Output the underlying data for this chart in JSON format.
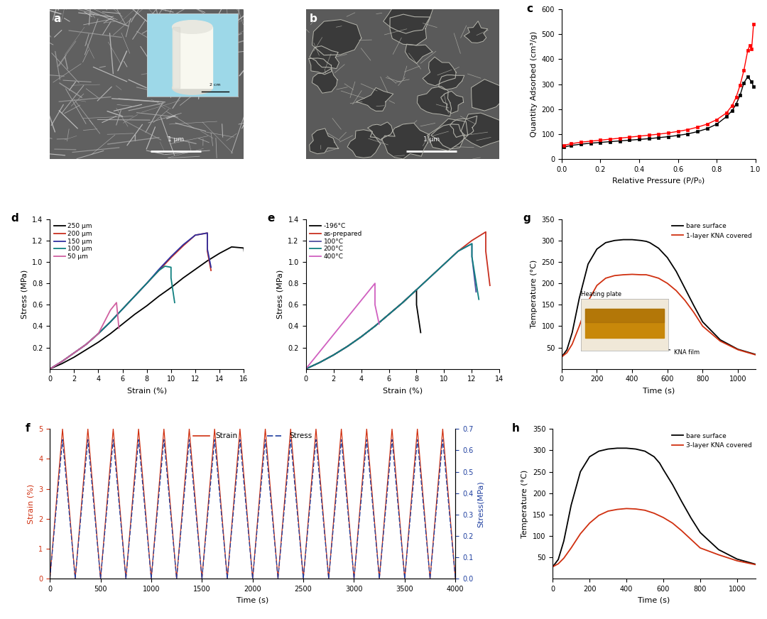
{
  "panel_c": {
    "black_x": [
      0.01,
      0.05,
      0.1,
      0.15,
      0.2,
      0.25,
      0.3,
      0.35,
      0.4,
      0.45,
      0.5,
      0.55,
      0.6,
      0.65,
      0.7,
      0.75,
      0.8,
      0.85,
      0.88,
      0.9,
      0.92,
      0.94,
      0.96,
      0.98,
      0.99
    ],
    "black_y": [
      48,
      55,
      60,
      64,
      67,
      70,
      73,
      76,
      79,
      82,
      86,
      90,
      95,
      101,
      110,
      122,
      140,
      170,
      195,
      220,
      255,
      305,
      330,
      310,
      290
    ],
    "red_x": [
      0.01,
      0.05,
      0.1,
      0.15,
      0.2,
      0.25,
      0.3,
      0.35,
      0.4,
      0.45,
      0.5,
      0.55,
      0.6,
      0.65,
      0.7,
      0.75,
      0.8,
      0.85,
      0.88,
      0.9,
      0.92,
      0.94,
      0.96,
      0.97,
      0.98,
      0.99
    ],
    "red_y": [
      55,
      62,
      68,
      72,
      76,
      80,
      84,
      88,
      92,
      96,
      100,
      105,
      111,
      118,
      128,
      140,
      158,
      185,
      215,
      248,
      295,
      355,
      435,
      455,
      440,
      540
    ],
    "xlabel": "Relative Pressure (P/P₀)",
    "ylabel": "Quantity Adsorbed (cm³/g)",
    "ylim": [
      0,
      600
    ],
    "yticks": [
      0,
      100,
      200,
      300,
      400,
      500,
      600
    ],
    "xlim": [
      0.0,
      1.0
    ],
    "xticks": [
      0.0,
      0.2,
      0.4,
      0.6,
      0.8,
      1.0
    ]
  },
  "panel_d": {
    "series": [
      {
        "label": "250 μm",
        "color": "#000000",
        "x": [
          0,
          1,
          2,
          3,
          4,
          5,
          6,
          7,
          8,
          9,
          10,
          11,
          12,
          13,
          14,
          15,
          16,
          16.3
        ],
        "y": [
          0,
          0.05,
          0.11,
          0.18,
          0.25,
          0.33,
          0.42,
          0.51,
          0.59,
          0.68,
          0.76,
          0.85,
          0.93,
          1.01,
          1.08,
          1.14,
          1.13,
          0.85
        ]
      },
      {
        "label": "200 μm",
        "color": "#c83020",
        "x": [
          0,
          1,
          2,
          3,
          4,
          5,
          6,
          7,
          8,
          9,
          10,
          11,
          12,
          13,
          13.0,
          13.3
        ],
        "y": [
          0,
          0.07,
          0.15,
          0.23,
          0.33,
          0.44,
          0.56,
          0.68,
          0.8,
          0.92,
          1.04,
          1.15,
          1.25,
          1.27,
          1.1,
          0.92
        ]
      },
      {
        "label": "150 μm",
        "color": "#3030a0",
        "x": [
          0,
          1,
          2,
          3,
          4,
          5,
          6,
          7,
          8,
          9,
          10,
          11,
          12,
          13,
          13.0,
          13.3
        ],
        "y": [
          0,
          0.07,
          0.15,
          0.23,
          0.33,
          0.44,
          0.56,
          0.68,
          0.8,
          0.93,
          1.05,
          1.16,
          1.25,
          1.27,
          1.12,
          0.95
        ]
      },
      {
        "label": "100 μm",
        "color": "#108080",
        "x": [
          0,
          1,
          2,
          3,
          4,
          5,
          6,
          7,
          8,
          9,
          9.5,
          10.0,
          10.0,
          10.3
        ],
        "y": [
          0,
          0.07,
          0.15,
          0.23,
          0.33,
          0.44,
          0.56,
          0.68,
          0.8,
          0.92,
          0.96,
          0.95,
          0.85,
          0.62
        ]
      },
      {
        "label": "50 μm",
        "color": "#d060a0",
        "x": [
          0,
          1,
          2,
          3,
          4,
          5,
          5.5,
          5.6,
          5.7
        ],
        "y": [
          0,
          0.07,
          0.15,
          0.23,
          0.33,
          0.55,
          0.62,
          0.5,
          0.38
        ]
      }
    ],
    "xlabel": "Strain (%)",
    "ylabel": "Stress (MPa)",
    "ylim": [
      0,
      1.4
    ],
    "xlim": [
      0,
      16
    ],
    "yticks": [
      0.2,
      0.4,
      0.6,
      0.8,
      1.0,
      1.2,
      1.4
    ],
    "xticks": [
      0,
      2,
      4,
      6,
      8,
      10,
      12,
      14,
      16
    ]
  },
  "panel_e": {
    "series": [
      {
        "label": "-196°C",
        "color": "#000000",
        "x": [
          0,
          1,
          2,
          3,
          4,
          5,
          6,
          7,
          8,
          8.0,
          8.3
        ],
        "y": [
          0,
          0.06,
          0.13,
          0.21,
          0.3,
          0.4,
          0.51,
          0.62,
          0.74,
          0.6,
          0.34
        ]
      },
      {
        "label": "as-prepared",
        "color": "#c83020",
        "x": [
          0,
          1,
          2,
          3,
          4,
          5,
          6,
          7,
          8,
          9,
          10,
          11,
          12,
          13,
          13.0,
          13.3
        ],
        "y": [
          0,
          0.06,
          0.13,
          0.21,
          0.3,
          0.4,
          0.51,
          0.62,
          0.74,
          0.86,
          0.98,
          1.1,
          1.2,
          1.28,
          1.1,
          0.78
        ]
      },
      {
        "label": "100°C",
        "color": "#5050a0",
        "x": [
          0,
          1,
          2,
          3,
          4,
          5,
          6,
          7,
          8,
          9,
          10,
          11,
          12,
          12.0,
          12.3
        ],
        "y": [
          0,
          0.06,
          0.13,
          0.21,
          0.3,
          0.4,
          0.51,
          0.62,
          0.74,
          0.86,
          0.98,
          1.1,
          1.17,
          1.05,
          0.72
        ]
      },
      {
        "label": "200°C",
        "color": "#108080",
        "x": [
          0,
          1,
          2,
          3,
          4,
          5,
          6,
          7,
          8,
          9,
          10,
          11,
          12,
          12.0,
          12.5
        ],
        "y": [
          0,
          0.06,
          0.13,
          0.21,
          0.3,
          0.4,
          0.51,
          0.62,
          0.74,
          0.86,
          0.98,
          1.1,
          1.17,
          1.05,
          0.65
        ]
      },
      {
        "label": "400°C",
        "color": "#d060c0",
        "x": [
          0,
          1,
          2,
          3,
          4,
          5,
          5.0,
          5.3
        ],
        "y": [
          0,
          0.16,
          0.32,
          0.48,
          0.64,
          0.8,
          0.6,
          0.42
        ]
      }
    ],
    "xlabel": "Strain (%)",
    "ylabel": "Stress (MPa)",
    "ylim": [
      0,
      1.4
    ],
    "xlim": [
      0,
      14
    ],
    "yticks": [
      0.2,
      0.4,
      0.6,
      0.8,
      1.0,
      1.2,
      1.4
    ],
    "xticks": [
      0,
      2,
      4,
      6,
      8,
      10,
      12,
      14
    ]
  },
  "panel_f": {
    "period": 250,
    "strain_max": 5.0,
    "stress_max": 0.65,
    "xlabel": "Time (s)",
    "ylabel_left": "Strain (%)",
    "ylabel_right": "Stress(MPa)",
    "xlim": [
      0,
      4000
    ],
    "xticks": [
      0,
      500,
      1000,
      1500,
      2000,
      2500,
      3000,
      3500,
      4000
    ],
    "ylim_left": [
      0,
      5
    ],
    "ylim_right": [
      0.0,
      0.7
    ],
    "yticks_left": [
      0,
      1,
      2,
      3,
      4,
      5
    ],
    "yticks_right": [
      0.0,
      0.1,
      0.2,
      0.3,
      0.4,
      0.5,
      0.6,
      0.7
    ],
    "strain_color": "#d03010",
    "stress_color": "#2040a0"
  },
  "panel_g": {
    "bare_x": [
      0,
      30,
      60,
      100,
      150,
      200,
      250,
      300,
      350,
      400,
      450,
      480,
      500,
      550,
      600,
      650,
      700,
      750,
      800,
      900,
      1000,
      1100
    ],
    "bare_y": [
      28,
      45,
      85,
      165,
      245,
      280,
      295,
      300,
      302,
      302,
      300,
      298,
      295,
      282,
      260,
      228,
      188,
      148,
      110,
      68,
      46,
      34
    ],
    "kna_x": [
      0,
      30,
      60,
      100,
      150,
      200,
      250,
      300,
      350,
      400,
      450,
      480,
      500,
      550,
      600,
      650,
      700,
      750,
      800,
      900,
      1000,
      1100
    ],
    "kna_y": [
      28,
      38,
      58,
      100,
      158,
      195,
      212,
      218,
      220,
      221,
      220,
      220,
      218,
      212,
      200,
      183,
      160,
      132,
      100,
      65,
      45,
      33
    ],
    "xlabel": "Time (s)",
    "ylabel": "Temperature (°C)",
    "ylim": [
      0,
      350
    ],
    "xlim": [
      0,
      1100
    ],
    "yticks": [
      50,
      100,
      150,
      200,
      250,
      300,
      350
    ],
    "xticks": [
      0,
      200,
      400,
      600,
      800,
      1000
    ],
    "legend1": "bare surface",
    "legend2": "1-layer KNA covered",
    "bare_color": "#000000",
    "kna_color": "#d03010",
    "inset_color": "#c8880a",
    "inset_bg": "#f0e8d8"
  },
  "panel_h": {
    "bare_x": [
      0,
      30,
      60,
      100,
      150,
      200,
      250,
      300,
      350,
      400,
      450,
      500,
      550,
      580,
      600,
      650,
      700,
      750,
      800,
      900,
      1000,
      1100
    ],
    "bare_y": [
      28,
      45,
      88,
      172,
      250,
      285,
      298,
      303,
      305,
      305,
      303,
      298,
      285,
      270,
      255,
      220,
      180,
      142,
      108,
      68,
      46,
      34
    ],
    "kna_x": [
      0,
      30,
      60,
      100,
      150,
      200,
      250,
      300,
      350,
      400,
      450,
      500,
      550,
      600,
      650,
      700,
      750,
      800,
      900,
      1000,
      1100
    ],
    "kna_y": [
      28,
      35,
      48,
      72,
      105,
      130,
      148,
      158,
      162,
      164,
      163,
      160,
      153,
      143,
      130,
      112,
      92,
      72,
      56,
      42,
      33
    ],
    "xlabel": "Time (s)",
    "ylabel": "Temperature (°C)",
    "ylim": [
      0,
      350
    ],
    "xlim": [
      0,
      1100
    ],
    "yticks": [
      50,
      100,
      150,
      200,
      250,
      300,
      350
    ],
    "xticks": [
      0,
      200,
      400,
      600,
      800,
      1000
    ],
    "legend1": "bare surface",
    "legend2": "3-layer KNA covered",
    "bare_color": "#000000",
    "kna_color": "#d03010"
  },
  "image_bg_color": "#ffffff",
  "label_fontsize": 11,
  "axis_fontsize": 8,
  "tick_fontsize": 7
}
